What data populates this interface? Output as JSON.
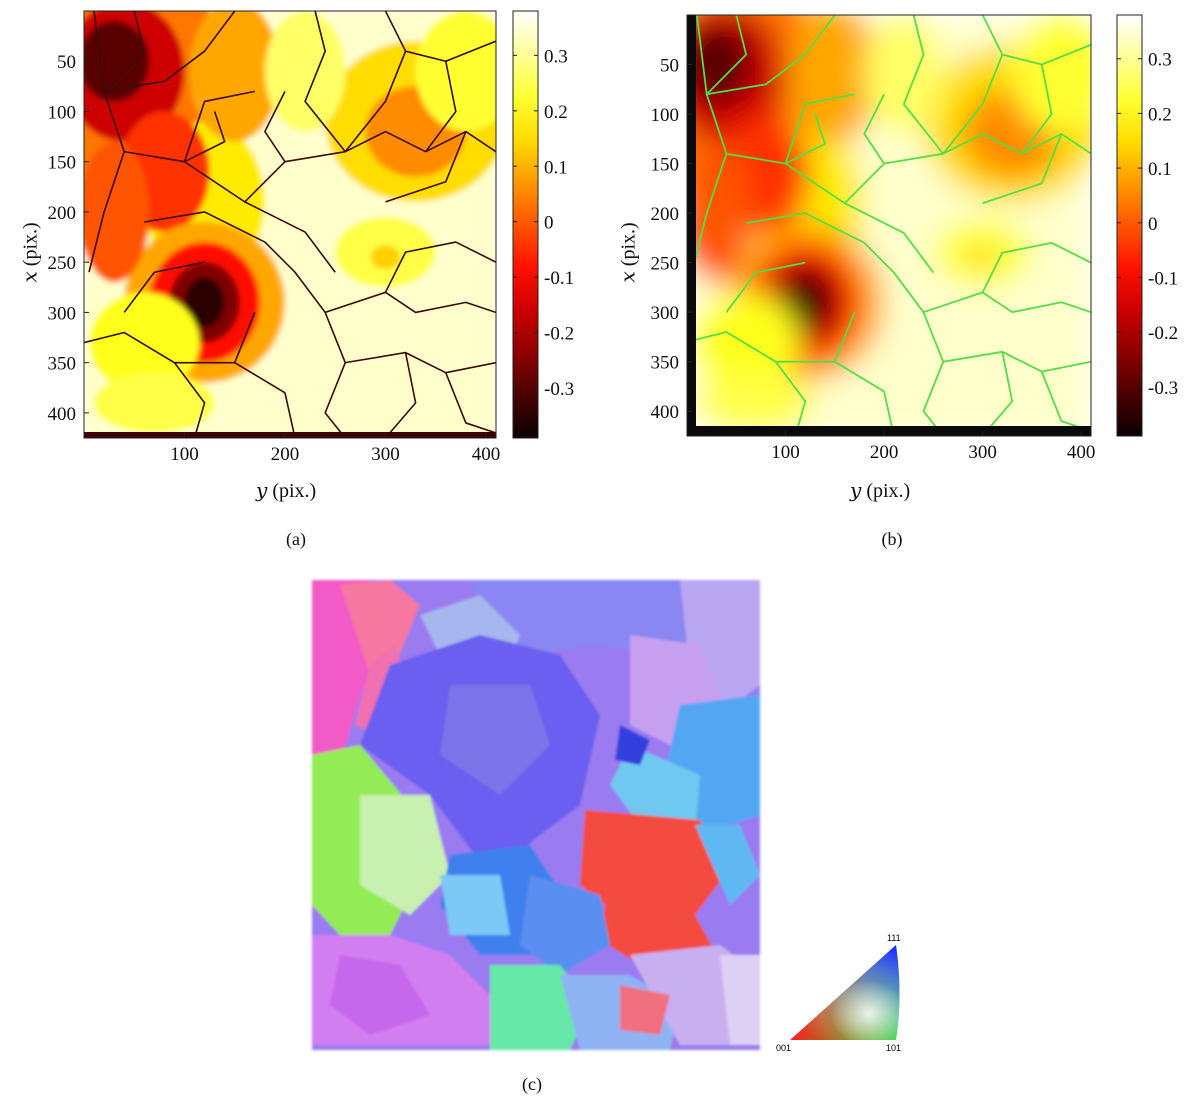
{
  "chart_data": [
    {
      "type": "heatmap",
      "panel": "(a)",
      "xlabel_var": "y",
      "xlabel_unit": "(pix.)",
      "ylabel_var": "x",
      "ylabel_unit": "(pix.)",
      "x_ticks": [
        "100",
        "200",
        "300",
        "400"
      ],
      "y_ticks": [
        "50",
        "100",
        "150",
        "200",
        "250",
        "300",
        "350",
        "400"
      ],
      "xlim": [
        0,
        410
      ],
      "ylim": [
        0,
        425
      ],
      "colorbar_ticks": [
        "0.3",
        "0.2",
        "0.1",
        "0",
        "-0.1",
        "-0.2",
        "-0.3"
      ],
      "colorbar_range": [
        -0.39,
        0.38
      ],
      "colormap": "hot",
      "boundary_color": "#3b0a0a",
      "style": "contoured"
    },
    {
      "type": "heatmap",
      "panel": "(b)",
      "xlabel_var": "y",
      "xlabel_unit": "(pix.)",
      "ylabel_var": "x",
      "ylabel_unit": "(pix.)",
      "x_ticks": [
        "100",
        "200",
        "300",
        "400"
      ],
      "y_ticks": [
        "50",
        "100",
        "150",
        "200",
        "250",
        "300",
        "350",
        "400"
      ],
      "xlim": [
        0,
        410
      ],
      "ylim": [
        0,
        425
      ],
      "colorbar_ticks": [
        "0.3",
        "0.2",
        "0.1",
        "0",
        "-0.1",
        "-0.2",
        "-0.3"
      ],
      "colorbar_range": [
        -0.39,
        0.38
      ],
      "colormap": "hot",
      "boundary_color": "#55dd44",
      "style": "smooth"
    }
  ],
  "panel_c": {
    "caption": "(c)",
    "legend_labels": {
      "top": "111",
      "left": "001",
      "right": "101"
    }
  },
  "captions": {
    "a": "(a)",
    "b": "(b)",
    "c": "(c)"
  }
}
